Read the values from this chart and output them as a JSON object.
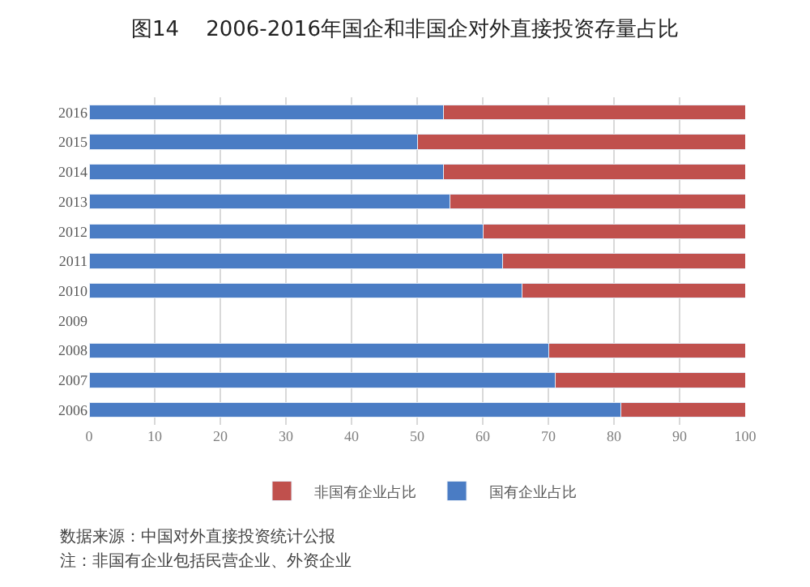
{
  "chart_data": {
    "type": "bar",
    "orientation": "horizontal",
    "stacked": true,
    "title": "图14    2006-2016年国企和非国企对外直接投资存量占比",
    "categories": [
      "2016",
      "2015",
      "2014",
      "2013",
      "2012",
      "2011",
      "2010",
      "2009",
      "2008",
      "2007",
      "2006"
    ],
    "series": [
      {
        "name": "国有企业占比",
        "color": "#4a7cc4",
        "values": [
          54,
          50,
          54,
          55,
          60,
          63,
          66,
          null,
          70,
          71,
          81
        ]
      },
      {
        "name": "非国有企业占比",
        "color": "#c0504d",
        "values": [
          46,
          50,
          46,
          45,
          40,
          37,
          34,
          null,
          30,
          29,
          19
        ]
      }
    ],
    "xlim": [
      0,
      100
    ],
    "xticks": [
      0,
      10,
      20,
      30,
      40,
      50,
      60,
      70,
      80,
      90,
      100
    ],
    "grid": "x",
    "legend": "bottom",
    "annotations": [
      "数据来源：中国对外直接投资统计公报",
      "注：非国有企业包括民营企业、外资企业"
    ]
  }
}
